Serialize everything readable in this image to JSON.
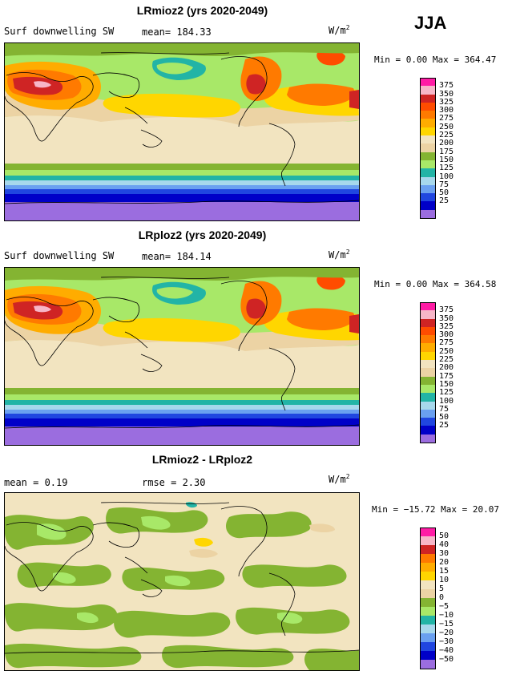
{
  "season": "JJA",
  "colors": {
    "abs": [
      "#9b6ddf",
      "#0000c8",
      "#2046e0",
      "#6aa0f0",
      "#a7d8ec",
      "#22b4a6",
      "#a8e868",
      "#84b432",
      "#ecd3a4",
      "#f2e4c0",
      "#ffd600",
      "#ffac00",
      "#ff7a00",
      "#ff4c00",
      "#cf2424",
      "#f7b6c8",
      "#ff1ca5"
    ],
    "diff": [
      "#9b6ddf",
      "#0000c8",
      "#2046e0",
      "#6aa0f0",
      "#a7d8ec",
      "#22b4a6",
      "#a8e868",
      "#84b432",
      "#ecd3a4",
      "#f2e4c0",
      "#ffd600",
      "#ffac00",
      "#ff7a00",
      "#cf2424",
      "#f7b6c8",
      "#ff1ca5"
    ]
  },
  "panels": [
    {
      "title": "LRmioz2 (yrs 2020-2049)",
      "variable": "Surf downwelling SW",
      "stat": "mean= 184.33",
      "units": "W/m",
      "units_sup": "2",
      "minmax": "Min =    0.00 Max = 364.47",
      "legend_labels": [
        "375",
        "350",
        "325",
        "300",
        "275",
        "250",
        "225",
        "200",
        "175",
        "150",
        "125",
        "100",
        "75",
        "50",
        "25"
      ]
    },
    {
      "title": "LRploz2 (yrs 2020-2049)",
      "variable": "Surf downwelling SW",
      "stat": "mean= 184.14",
      "units": "W/m",
      "units_sup": "2",
      "minmax": "Min =    0.00 Max = 364.58",
      "legend_labels": [
        "375",
        "350",
        "325",
        "300",
        "275",
        "250",
        "225",
        "200",
        "175",
        "150",
        "125",
        "100",
        "75",
        "50",
        "25"
      ]
    },
    {
      "title": "LRmioz2 - LRploz2",
      "variable": "mean =   0.19",
      "stat": "rmse =   2.30",
      "units": "W/m",
      "units_sup": "2",
      "minmax": "Min = −15.72 Max =  20.07",
      "legend_labels": [
        "50",
        "40",
        "30",
        "20",
        "15",
        "10",
        "5",
        "0",
        "−5",
        "−10",
        "−15",
        "−20",
        "−30",
        "−40",
        "−50"
      ]
    }
  ]
}
